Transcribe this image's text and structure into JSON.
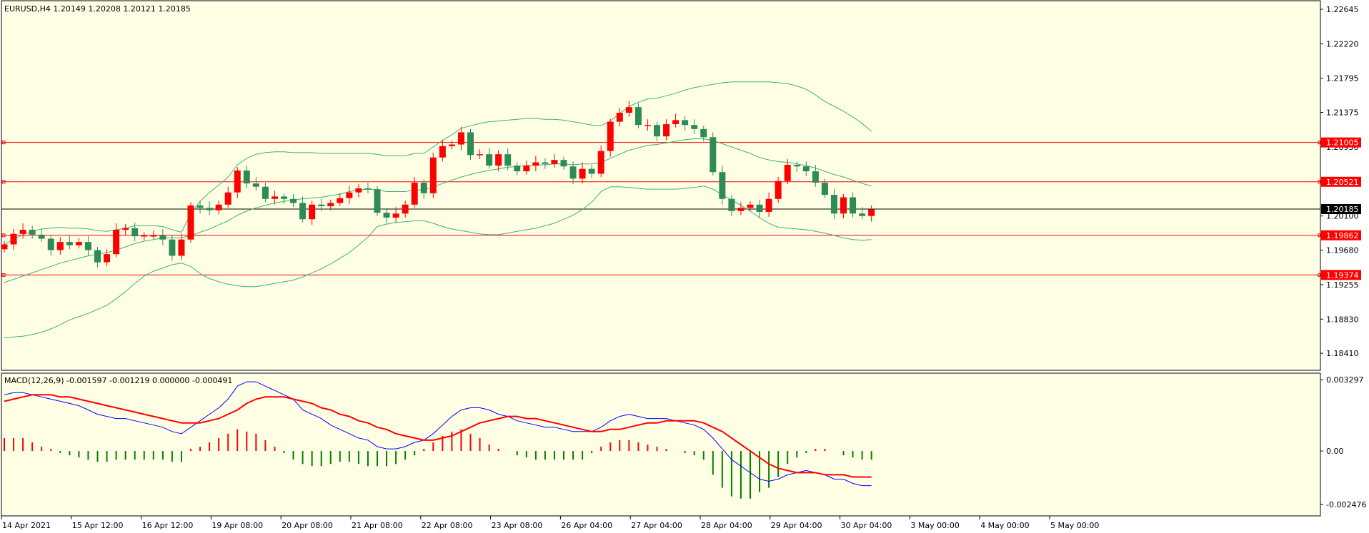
{
  "chart_data": {
    "type": "candlestick",
    "symbol_header": "EURUSD,H4  1.20149 1.20208 1.20121 1.20185",
    "price_axis": {
      "range": [
        1.182,
        1.2275
      ],
      "ticks": [
        "1.22645",
        "1.22220",
        "1.21795",
        "1.21375",
        "1.20950",
        "1.20525",
        "1.20100",
        "1.19680",
        "1.19255",
        "1.18830",
        "1.18410"
      ]
    },
    "horizontal_levels": [
      {
        "value": 1.21005,
        "label": "1.21005",
        "color": "#ff0000"
      },
      {
        "value": 1.20521,
        "label": "1.20521",
        "color": "#ff0000"
      },
      {
        "value": 1.19862,
        "label": "1.19862",
        "color": "#ff0000"
      },
      {
        "value": 1.19374,
        "label": "1.19374",
        "color": "#ff0000"
      }
    ],
    "current_price": {
      "value": 1.20185,
      "label": "1.20185",
      "color": "#000000"
    },
    "time_axis_labels": [
      "14 Apr 2021",
      "15 Apr 12:00",
      "16 Apr 12:00",
      "19 Apr 08:00",
      "20 Apr 08:00",
      "21 Apr 08:00",
      "22 Apr 08:00",
      "23 Apr 08:00",
      "26 Apr 04:00",
      "27 Apr 04:00",
      "28 Apr 04:00",
      "29 Apr 04:00",
      "30 Apr 04:00",
      "3 May 00:00",
      "4 May 00:00",
      "5 May 00:00"
    ],
    "candles_close": [
      1.1975,
      1.1988,
      1.1993,
      1.1987,
      1.1982,
      1.1968,
      1.1978,
      1.1974,
      1.1978,
      1.1968,
      1.1953,
      1.1963,
      1.1993,
      1.1995,
      1.1985,
      1.1986,
      1.1986,
      1.1981,
      1.1961,
      1.1981,
      1.2023,
      1.202,
      1.2017,
      1.2024,
      1.2039,
      1.2066,
      1.205,
      1.2046,
      1.2031,
      1.2034,
      1.2031,
      1.2026,
      1.2006,
      1.2024,
      1.2022,
      1.2026,
      1.2032,
      1.2039,
      1.2044,
      1.2043,
      1.2014,
      1.2008,
      1.2013,
      1.2024,
      1.2051,
      1.2038,
      1.2082,
      1.2096,
      1.2098,
      1.2113,
      1.2085,
      1.2086,
      1.2072,
      1.2086,
      1.2072,
      1.2065,
      1.2072,
      1.2076,
      1.2074,
      1.2079,
      1.2071,
      1.2056,
      1.2068,
      1.2062,
      1.209,
      1.2126,
      1.2137,
      1.2144,
      1.2122,
      1.2122,
      1.2108,
      1.2123,
      1.2128,
      1.2122,
      1.2117,
      1.2107,
      1.2064,
      1.2031,
      1.2016,
      1.202,
      1.2024,
      1.2015,
      1.2031,
      1.2053,
      1.2073,
      1.2071,
      1.2065,
      1.2051,
      1.2036,
      1.2013,
      1.2033,
      1.2013,
      1.201,
      1.2018
    ],
    "bollinger": {
      "middle": [
        1.1928,
        1.1932,
        1.1936,
        1.194,
        1.1944,
        1.1948,
        1.1952,
        1.1955,
        1.1958,
        1.1961,
        1.1963,
        1.1965,
        1.1968,
        1.1972,
        1.1976,
        1.1979,
        1.1981,
        1.1983,
        1.1983,
        1.1983,
        1.1986,
        1.199,
        1.1994,
        1.1999,
        1.2004,
        1.2011,
        1.2016,
        1.202,
        1.2023,
        1.2026,
        1.2028,
        1.203,
        1.2031,
        1.2032,
        1.2033,
        1.2035,
        1.2037,
        1.204,
        1.2042,
        1.2043,
        1.2042,
        1.204,
        1.204,
        1.204,
        1.2042,
        1.2042,
        1.2046,
        1.205,
        1.2054,
        1.2058,
        1.2061,
        1.2064,
        1.2066,
        1.2068,
        1.207,
        1.2071,
        1.2072,
        1.2073,
        1.2073,
        1.2074,
        1.2074,
        1.2073,
        1.2074,
        1.2074,
        1.2076,
        1.2081,
        1.2086,
        1.2091,
        1.2094,
        1.2097,
        1.2098,
        1.21,
        1.2102,
        1.2104,
        1.2105,
        1.2105,
        1.2103,
        1.2099,
        1.2095,
        1.2091,
        1.2087,
        1.2082,
        1.2079,
        1.2077,
        1.2076,
        1.2074,
        1.2072,
        1.2069,
        1.2065,
        1.2061,
        1.2058,
        1.2054,
        1.205,
        1.2047
      ],
      "upper": [
        1.1975,
        1.1981,
        1.1987,
        1.1991,
        1.1994,
        1.1995,
        1.1996,
        1.1995,
        1.1995,
        1.1994,
        1.1992,
        1.1991,
        1.1993,
        1.1995,
        1.1998,
        1.1998,
        1.1998,
        1.1997,
        1.1993,
        1.199,
        1.2013,
        1.2028,
        1.2039,
        1.2048,
        1.2058,
        1.2073,
        1.2081,
        1.2086,
        1.2088,
        1.2089,
        1.2089,
        1.2088,
        1.2088,
        1.2088,
        1.2087,
        1.2087,
        1.2087,
        1.2087,
        1.2087,
        1.2087,
        1.2086,
        1.2084,
        1.2084,
        1.2084,
        1.2087,
        1.2087,
        1.2095,
        1.2103,
        1.211,
        1.2118,
        1.2121,
        1.2124,
        1.2126,
        1.2127,
        1.2128,
        1.2129,
        1.213,
        1.213,
        1.2129,
        1.2129,
        1.2128,
        1.2126,
        1.2124,
        1.2122,
        1.2121,
        1.2127,
        1.2136,
        1.2145,
        1.215,
        1.2154,
        1.2155,
        1.2158,
        1.2161,
        1.2165,
        1.2168,
        1.217,
        1.2172,
        1.2174,
        1.2175,
        1.2175,
        1.2175,
        1.2175,
        1.2175,
        1.2174,
        1.2173,
        1.217,
        1.2166,
        1.2159,
        1.2151,
        1.2145,
        1.2139,
        1.2132,
        1.2124,
        1.2114
      ],
      "lower": [
        1.186,
        1.1861,
        1.1862,
        1.1864,
        1.1867,
        1.1871,
        1.1876,
        1.1882,
        1.1886,
        1.189,
        1.1895,
        1.19,
        1.1908,
        1.1917,
        1.1927,
        1.1936,
        1.1942,
        1.1946,
        1.195,
        1.1952,
        1.1948,
        1.1939,
        1.1933,
        1.1929,
        1.1926,
        1.1924,
        1.1923,
        1.1923,
        1.1925,
        1.1927,
        1.1929,
        1.1931,
        1.1935,
        1.194,
        1.1945,
        1.1951,
        1.1958,
        1.1965,
        1.1974,
        1.1984,
        1.1997,
        1.2,
        1.2002,
        1.2003,
        1.2004,
        1.2004,
        1.2001,
        1.1997,
        1.1994,
        1.1992,
        1.199,
        1.1988,
        1.1987,
        1.1987,
        1.1989,
        1.1991,
        1.1993,
        1.1995,
        1.1998,
        1.2001,
        1.2006,
        1.2011,
        1.2018,
        1.2027,
        1.204,
        1.2046,
        1.2046,
        1.2045,
        1.2044,
        1.2043,
        1.2043,
        1.2043,
        1.2043,
        1.2044,
        1.2045,
        1.2047,
        1.2043,
        1.2036,
        1.203,
        1.2023,
        1.2016,
        1.2008,
        1.2001,
        1.1996,
        1.1995,
        1.1994,
        1.1993,
        1.1991,
        1.1989,
        1.1986,
        1.1983,
        1.1981,
        1.198,
        1.1981
      ],
      "color": "#3cb371"
    },
    "macd": {
      "label": "MACD(12,26,9) -0.001597 -0.001219 0.000000 -0.000491",
      "axis_range": [
        -0.003,
        0.0036
      ],
      "ticks": [
        "0.003297",
        "0.00",
        "-0.002476"
      ],
      "main": [
        0.0026,
        0.0027,
        0.0027,
        0.0026,
        0.0025,
        0.0024,
        0.0023,
        0.0022,
        0.0021,
        0.0019,
        0.0017,
        0.0016,
        0.0015,
        0.0015,
        0.0014,
        0.0013,
        0.0012,
        0.0011,
        0.0009,
        0.0008,
        0.0011,
        0.0014,
        0.0017,
        0.002,
        0.0024,
        0.003,
        0.0032,
        0.0032,
        0.003,
        0.0028,
        0.0026,
        0.0024,
        0.0019,
        0.0017,
        0.0015,
        0.0012,
        0.001,
        0.0008,
        0.0006,
        0.0005,
        0.0002,
        0.0001,
        0.0001,
        0.0002,
        0.0004,
        0.0005,
        0.0008,
        0.0012,
        0.0016,
        0.0019,
        0.002,
        0.002,
        0.0019,
        0.0017,
        0.0016,
        0.0014,
        0.0013,
        0.0012,
        0.0011,
        0.0011,
        0.001,
        0.0009,
        0.0009,
        0.0009,
        0.0011,
        0.0014,
        0.0016,
        0.0017,
        0.0016,
        0.0015,
        0.0015,
        0.0015,
        0.0014,
        0.0013,
        0.0012,
        0.001,
        0.0006,
        0.0001,
        -0.0004,
        -0.0007,
        -0.001,
        -0.0013,
        -0.0014,
        -0.0013,
        -0.0011,
        -0.001,
        -0.0009,
        -0.001,
        -0.0011,
        -0.0013,
        -0.0013,
        -0.0015,
        -0.0016,
        -0.0016
      ],
      "signal": [
        0.0023,
        0.0024,
        0.0025,
        0.0026,
        0.0026,
        0.0026,
        0.0025,
        0.0025,
        0.0024,
        0.0023,
        0.0022,
        0.0021,
        0.002,
        0.0019,
        0.0018,
        0.0017,
        0.0016,
        0.0015,
        0.0014,
        0.0013,
        0.0013,
        0.0013,
        0.0014,
        0.0015,
        0.0017,
        0.0019,
        0.0022,
        0.0024,
        0.0025,
        0.0025,
        0.0025,
        0.0024,
        0.0023,
        0.0022,
        0.002,
        0.0019,
        0.0017,
        0.0016,
        0.0014,
        0.0013,
        0.0011,
        0.001,
        0.0008,
        0.0007,
        0.0006,
        0.0005,
        0.0005,
        0.0006,
        0.0007,
        0.0009,
        0.0011,
        0.0013,
        0.0014,
        0.0015,
        0.0016,
        0.0016,
        0.0015,
        0.0015,
        0.0014,
        0.0013,
        0.0012,
        0.0011,
        0.001,
        0.0009,
        0.0009,
        0.001,
        0.001,
        0.0011,
        0.0012,
        0.0013,
        0.0013,
        0.0014,
        0.0014,
        0.0014,
        0.0014,
        0.0013,
        0.0011,
        0.0009,
        0.0006,
        0.0003,
        0.0,
        -0.0003,
        -0.0006,
        -0.0008,
        -0.0009,
        -0.001,
        -0.001,
        -0.001,
        -0.0011,
        -0.0011,
        -0.0011,
        -0.0012,
        -0.0012,
        -0.0012
      ],
      "histogram": [
        0.0006,
        0.0006,
        0.0006,
        0.0004,
        0.0002,
        0.0001,
        -0.0001,
        -0.0002,
        -0.0003,
        -0.0004,
        -0.0005,
        -0.0005,
        -0.0004,
        -0.0004,
        -0.0004,
        -0.0004,
        -0.0004,
        -0.0004,
        -0.0005,
        -0.0005,
        0.0001,
        0.0002,
        0.0004,
        0.0006,
        0.0008,
        0.001,
        0.0009,
        0.0008,
        0.0005,
        0.0002,
        -0.0001,
        -0.0004,
        -0.0006,
        -0.0007,
        -0.0007,
        -0.0006,
        -0.0005,
        -0.0005,
        -0.0006,
        -0.0007,
        -0.0007,
        -0.0007,
        -0.0006,
        -0.0004,
        -0.0002,
        0.0001,
        0.0004,
        0.0007,
        0.0009,
        0.001,
        0.0008,
        0.0006,
        0.0003,
        0.0001,
        0.0,
        -0.0002,
        -0.0003,
        -0.0004,
        -0.0004,
        -0.0004,
        -0.0004,
        -0.0004,
        -0.0004,
        -0.0001,
        0.0002,
        0.0004,
        0.0005,
        0.0005,
        0.0004,
        0.0003,
        0.0002,
        0.0001,
        0.0,
        -0.0001,
        -0.0002,
        -0.0004,
        -0.0011,
        -0.0017,
        -0.0021,
        -0.0022,
        -0.0022,
        -0.0019,
        -0.0017,
        -0.0012,
        -0.0006,
        -0.0003,
        -0.0001,
        0.0001,
        0.0001,
        0.0,
        -0.0002,
        -0.0003,
        -0.0004,
        -0.0004
      ],
      "main_color": "#0000ff",
      "signal_color": "#ff0000",
      "hist_up_color": "#ff0000",
      "hist_down_color": "#008000"
    },
    "colors": {
      "background": "#ffffe5",
      "bull": "#ff0000",
      "bear": "#2e8b57",
      "grid_border": "#000000"
    }
  }
}
